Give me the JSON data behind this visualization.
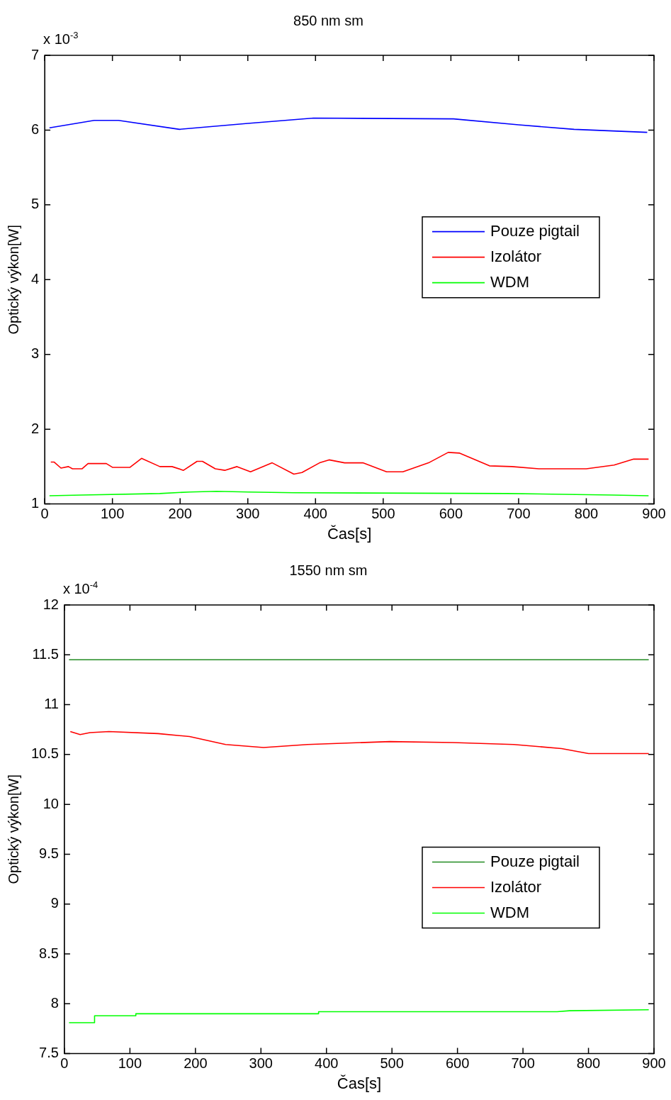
{
  "chart_data": [
    {
      "type": "line",
      "title": "850 nm sm",
      "xlabel": "Čas[s]",
      "ylabel": "Optický výkon[W]",
      "annotations": [
        "x 10$^{-3}$"
      ],
      "xlim": [
        0,
        900
      ],
      "xticks": [
        0,
        100,
        200,
        300,
        400,
        500,
        600,
        700,
        800,
        900
      ],
      "ylim": [
        1,
        7
      ],
      "yticks": [
        1,
        2,
        3,
        4,
        5,
        6,
        7
      ],
      "grid": false,
      "legend": "right",
      "series": [
        {
          "name": "Pouze pigtail",
          "color": "#0000ff",
          "x": [
            7,
            73,
            109,
            199,
            300,
            397,
            604,
            700,
            782,
            890
          ],
          "values": [
            6.03,
            6.13,
            6.13,
            6.01,
            6.09,
            6.16,
            6.15,
            6.07,
            6.01,
            5.97
          ]
        },
        {
          "name": "Izolátor",
          "color": "#ff0000",
          "x": [
            9,
            14,
            24,
            35,
            41,
            55,
            64,
            91,
            100,
            126,
            143,
            170,
            188,
            205,
            225,
            233,
            252,
            266,
            284,
            304,
            336,
            368,
            380,
            406,
            420,
            443,
            470,
            505,
            529,
            567,
            596,
            613,
            657,
            690,
            730,
            800,
            841,
            870,
            892
          ],
          "values": [
            1.56,
            1.56,
            1.48,
            1.5,
            1.47,
            1.47,
            1.54,
            1.54,
            1.49,
            1.49,
            1.61,
            1.5,
            1.5,
            1.45,
            1.57,
            1.57,
            1.47,
            1.45,
            1.5,
            1.43,
            1.55,
            1.4,
            1.42,
            1.55,
            1.59,
            1.55,
            1.55,
            1.43,
            1.43,
            1.55,
            1.69,
            1.68,
            1.51,
            1.5,
            1.47,
            1.47,
            1.52,
            1.6,
            1.6
          ]
        },
        {
          "name": "WDM",
          "color": "#00ff00",
          "x": [
            7,
            55,
            170,
            214,
            254,
            301,
            368,
            683,
            838,
            892
          ],
          "values": [
            1.11,
            1.12,
            1.14,
            1.16,
            1.17,
            1.16,
            1.15,
            1.14,
            1.12,
            1.11
          ]
        }
      ]
    },
    {
      "type": "line",
      "title": "1550 nm sm",
      "xlabel": "Čas[s]",
      "ylabel": "Optický výkon[W]",
      "annotations": [
        "x 10$^{-4}$"
      ],
      "xlim": [
        0,
        900
      ],
      "xticks": [
        0,
        100,
        200,
        300,
        400,
        500,
        600,
        700,
        800,
        900
      ],
      "ylim": [
        7.5,
        12
      ],
      "yticks": [
        7.5,
        8,
        8.5,
        9,
        9.5,
        10,
        10.5,
        11,
        11.5,
        12
      ],
      "grid": false,
      "legend": "bottom right",
      "series": [
        {
          "name": "Pouze pigtail",
          "color": "#228b22",
          "x": [
            7,
            892
          ],
          "values": [
            11.45,
            11.45
          ]
        },
        {
          "name": "Izolátor",
          "color": "#ff0000",
          "x": [
            9,
            24,
            39,
            68,
            143,
            191,
            246,
            304,
            371,
            497,
            593,
            686,
            759,
            800,
            892
          ],
          "values": [
            10.73,
            10.7,
            10.72,
            10.73,
            10.71,
            10.68,
            10.6,
            10.57,
            10.6,
            10.63,
            10.62,
            10.6,
            10.56,
            10.51,
            10.51
          ]
        },
        {
          "name": "WDM",
          "color": "#00ff00",
          "x": [
            7,
            46,
            46,
            109,
            109,
            388,
            388,
            752,
            771,
            892
          ],
          "values": [
            7.81,
            7.81,
            7.88,
            7.88,
            7.9,
            7.9,
            7.92,
            7.92,
            7.93,
            7.94
          ]
        }
      ]
    }
  ]
}
